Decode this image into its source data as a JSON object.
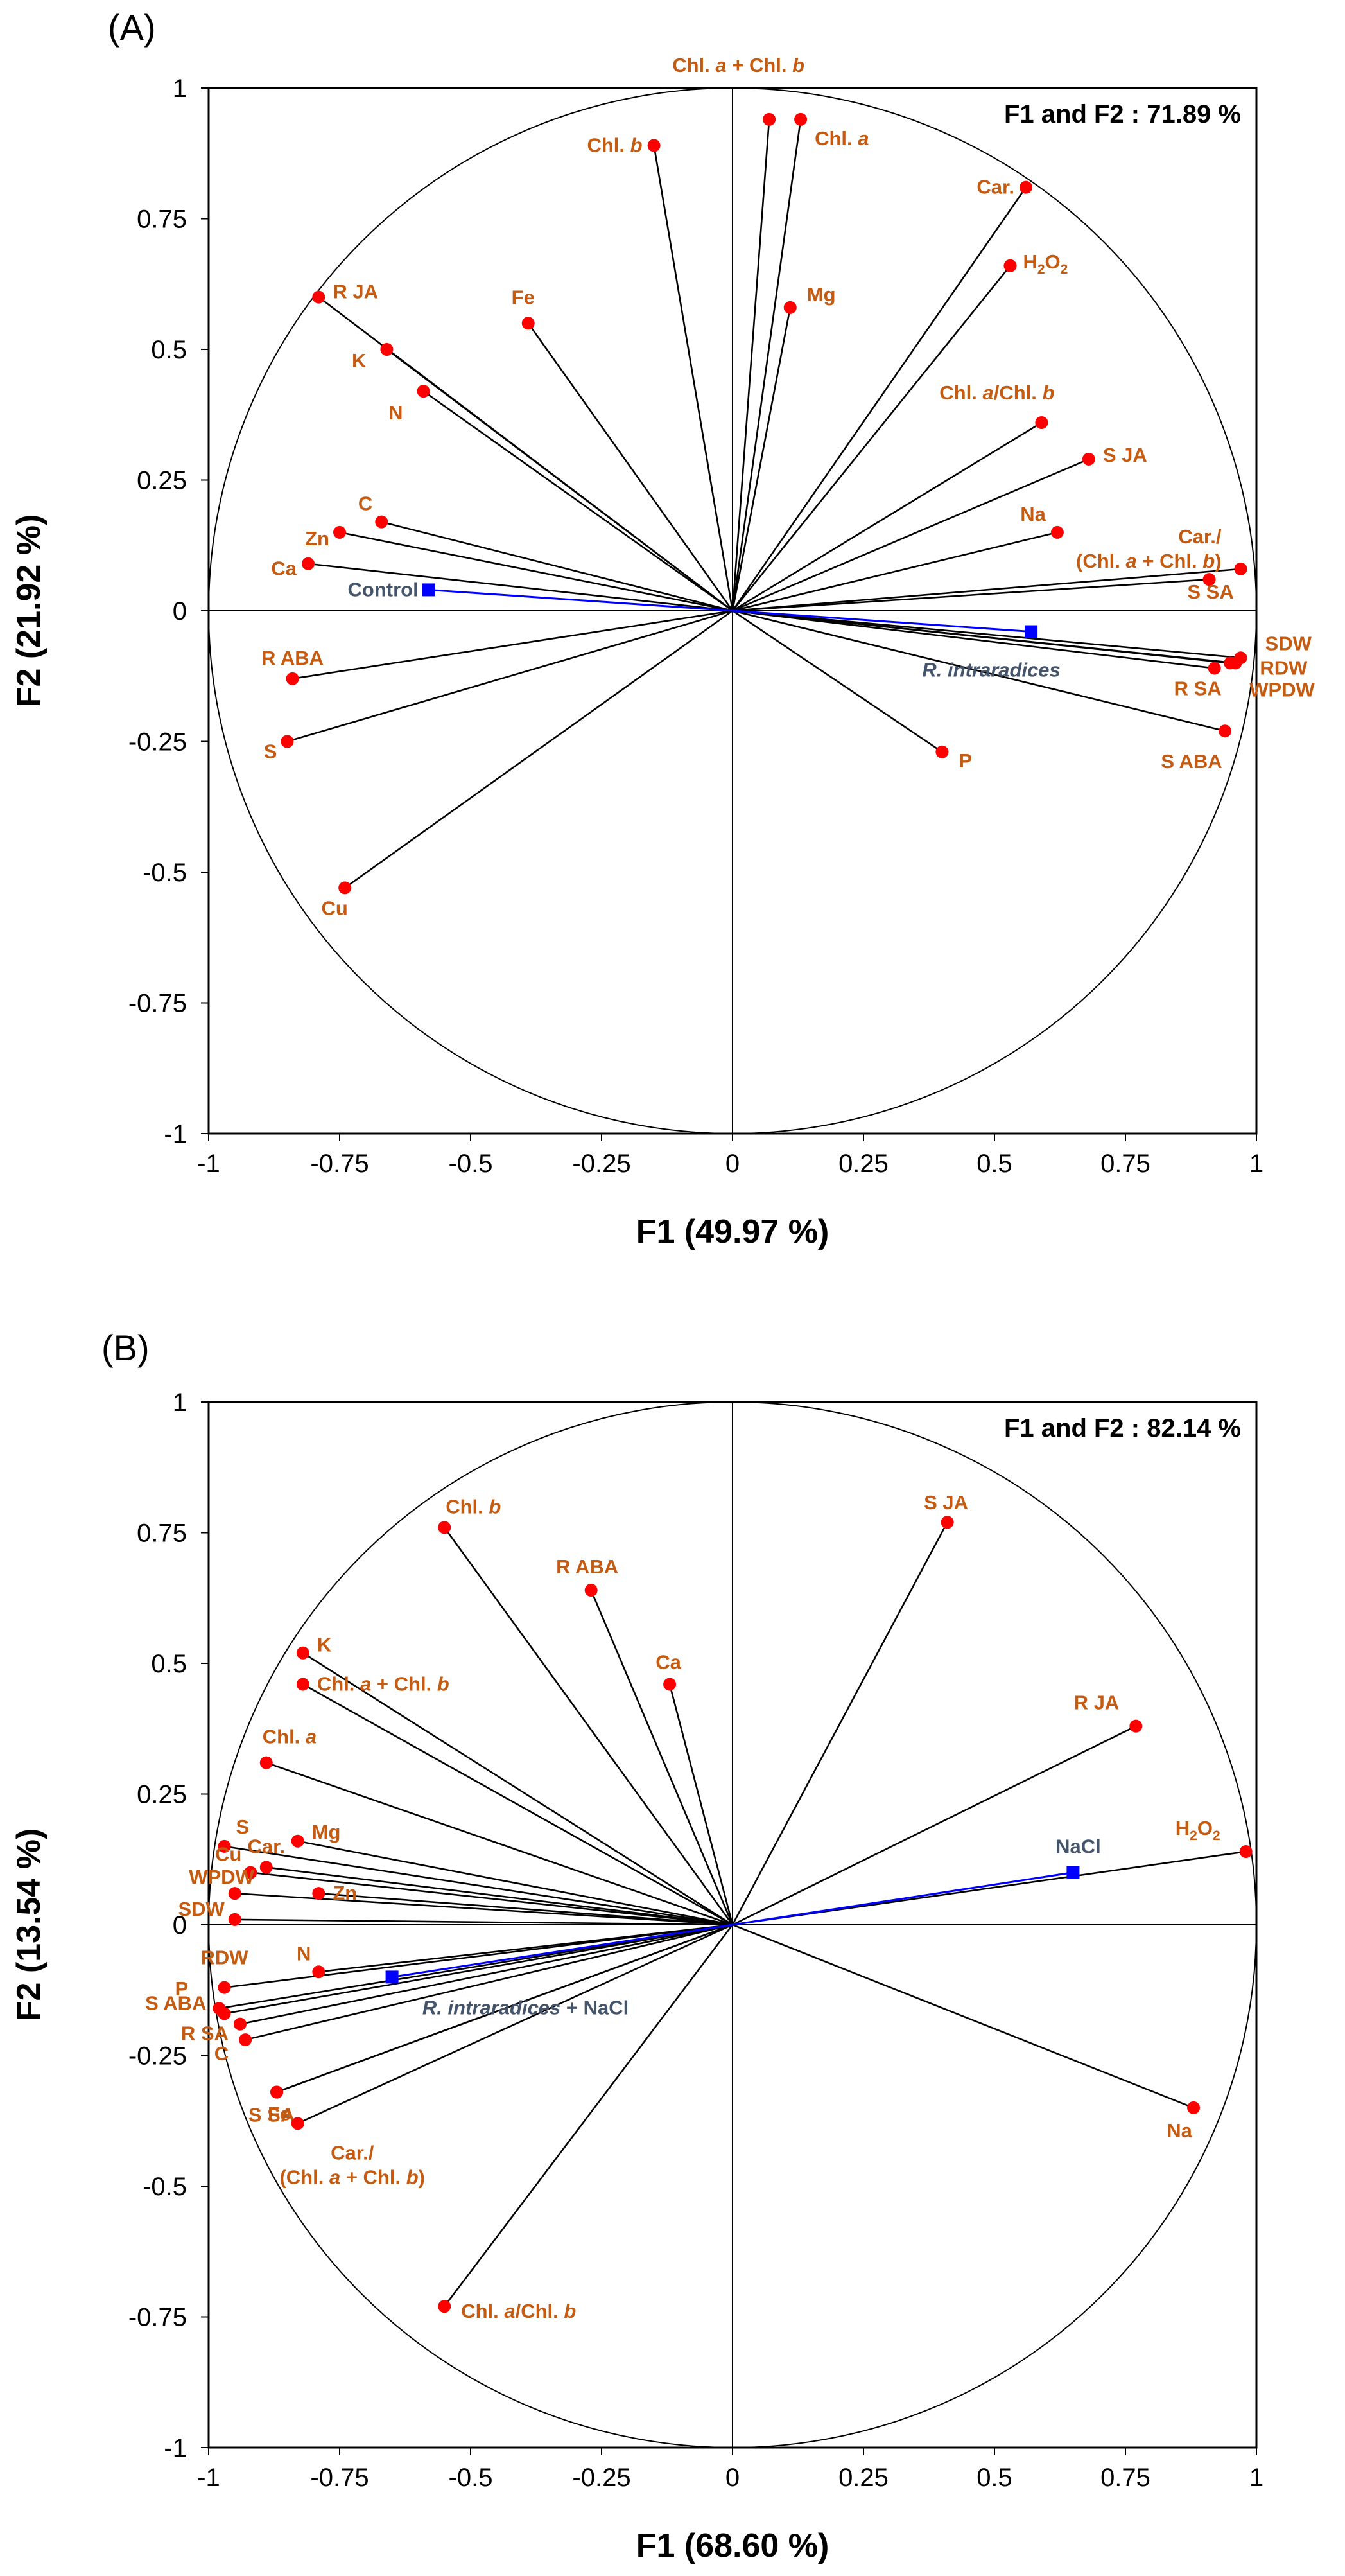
{
  "chart_data": [
    {
      "type": "scatter",
      "panel": "(A)",
      "summary": "F1 and F2 : 71.89 %",
      "xlabel": "F1 (49.97 %)",
      "ylabel": "F2 (21.92 %)",
      "xlim": [
        -1,
        1
      ],
      "ylim": [
        -1,
        1
      ],
      "xticks": [
        "-1",
        "-0.75",
        "-0.5",
        "-0.25",
        "0",
        "0.25",
        "0.5",
        "0.75",
        "1"
      ],
      "yticks": [
        "1",
        "0.75",
        "0.5",
        "0.25",
        "0",
        "-0.25",
        "-0.5",
        "-0.75",
        "-1"
      ],
      "variables": [
        {
          "label": "Chl. a + Chl. b",
          "x": 0.07,
          "y": 0.94
        },
        {
          "label": "Chl. a",
          "x": 0.13,
          "y": 0.94
        },
        {
          "label": "Chl. b",
          "x": -0.15,
          "y": 0.89
        },
        {
          "label": "Car.",
          "x": 0.56,
          "y": 0.81
        },
        {
          "label": "H2O2",
          "x": 0.53,
          "y": 0.66
        },
        {
          "label": "Mg",
          "x": 0.11,
          "y": 0.58
        },
        {
          "label": "Fe",
          "x": -0.39,
          "y": 0.55
        },
        {
          "label": "R JA",
          "x": -0.79,
          "y": 0.6
        },
        {
          "label": "K",
          "x": -0.66,
          "y": 0.5
        },
        {
          "label": "N",
          "x": -0.59,
          "y": 0.42
        },
        {
          "label": "Chl. a/Chl. b",
          "x": 0.59,
          "y": 0.36
        },
        {
          "label": "S JA",
          "x": 0.68,
          "y": 0.29
        },
        {
          "label": "Na",
          "x": 0.62,
          "y": 0.15
        },
        {
          "label": "C",
          "x": -0.67,
          "y": 0.17
        },
        {
          "label": "Zn",
          "x": -0.75,
          "y": 0.15
        },
        {
          "label": "Ca",
          "x": -0.81,
          "y": 0.09
        },
        {
          "label": "Car./(Chl. a + Chl. b)",
          "x": 0.97,
          "y": 0.08
        },
        {
          "label": "S SA",
          "x": 0.91,
          "y": 0.06
        },
        {
          "label": "SDW",
          "x": 0.97,
          "y": -0.09
        },
        {
          "label": "RDW",
          "x": 0.96,
          "y": -0.1
        },
        {
          "label": "WPDW",
          "x": 0.95,
          "y": -0.1
        },
        {
          "label": "R SA",
          "x": 0.92,
          "y": -0.11
        },
        {
          "label": "R ABA",
          "x": -0.84,
          "y": -0.13
        },
        {
          "label": "S ABA",
          "x": 0.94,
          "y": -0.23
        },
        {
          "label": "S",
          "x": -0.85,
          "y": -0.25
        },
        {
          "label": "P",
          "x": 0.4,
          "y": -0.27
        },
        {
          "label": "Cu",
          "x": -0.74,
          "y": -0.53
        }
      ],
      "observations": [
        {
          "label": "Control",
          "x": -0.58,
          "y": 0.04
        },
        {
          "label": "R. intraradices",
          "x": 0.57,
          "y": -0.04
        }
      ]
    },
    {
      "type": "scatter",
      "panel": "(B)",
      "summary": "F1 and F2 : 82.14 %",
      "xlabel": "F1 (68.60 %)",
      "ylabel": "F2 (13.54 %)",
      "xlim": [
        -1,
        1
      ],
      "ylim": [
        -1,
        1
      ],
      "xticks": [
        "-1",
        "-0.75",
        "-0.5",
        "-0.25",
        "0",
        "0.25",
        "0.5",
        "0.75",
        "1"
      ],
      "yticks": [
        "1",
        "0.75",
        "0.5",
        "0.25",
        "0",
        "-0.25",
        "-0.5",
        "-0.75",
        "-1"
      ],
      "variables": [
        {
          "label": "S JA",
          "x": 0.41,
          "y": 0.77
        },
        {
          "label": "Chl. b",
          "x": -0.55,
          "y": 0.76
        },
        {
          "label": "R ABA",
          "x": -0.27,
          "y": 0.64
        },
        {
          "label": "K",
          "x": -0.82,
          "y": 0.52
        },
        {
          "label": "Chl. a + Chl. b",
          "x": -0.82,
          "y": 0.46
        },
        {
          "label": "Ca",
          "x": -0.12,
          "y": 0.46
        },
        {
          "label": "R JA",
          "x": 0.77,
          "y": 0.38
        },
        {
          "label": "Chl. a",
          "x": -0.89,
          "y": 0.31
        },
        {
          "label": "S",
          "x": -0.97,
          "y": 0.15
        },
        {
          "label": "Mg",
          "x": -0.83,
          "y": 0.16
        },
        {
          "label": "H2O2",
          "x": 0.98,
          "y": 0.14
        },
        {
          "label": "Car.",
          "x": -0.89,
          "y": 0.11
        },
        {
          "label": "Cu",
          "x": -0.92,
          "y": 0.1
        },
        {
          "label": "WPDW",
          "x": -0.95,
          "y": 0.06
        },
        {
          "label": "Zn",
          "x": -0.79,
          "y": 0.06
        },
        {
          "label": "SDW",
          "x": -0.95,
          "y": 0.01
        },
        {
          "label": "RDW",
          "x": -0.97,
          "y": -0.12
        },
        {
          "label": "N",
          "x": -0.79,
          "y": -0.09
        },
        {
          "label": "P",
          "x": -0.98,
          "y": -0.16
        },
        {
          "label": "S ABA",
          "x": -0.97,
          "y": -0.17
        },
        {
          "label": "R SA",
          "x": -0.94,
          "y": -0.19
        },
        {
          "label": "C",
          "x": -0.93,
          "y": -0.22
        },
        {
          "label": "Fe",
          "x": -0.87,
          "y": -0.32
        },
        {
          "label": "S SA",
          "x": -0.87,
          "y": -0.32
        },
        {
          "label": "Car./(Chl. a + Chl. b)",
          "x": -0.83,
          "y": -0.38
        },
        {
          "label": "Na",
          "x": 0.88,
          "y": -0.35
        },
        {
          "label": "Chl. a/Chl. b",
          "x": -0.55,
          "y": -0.73
        }
      ],
      "observations": [
        {
          "label": "NaCl",
          "x": 0.65,
          "y": 0.1
        },
        {
          "label": "R. intraradices + NaCl",
          "x": -0.65,
          "y": -0.1
        }
      ]
    }
  ]
}
